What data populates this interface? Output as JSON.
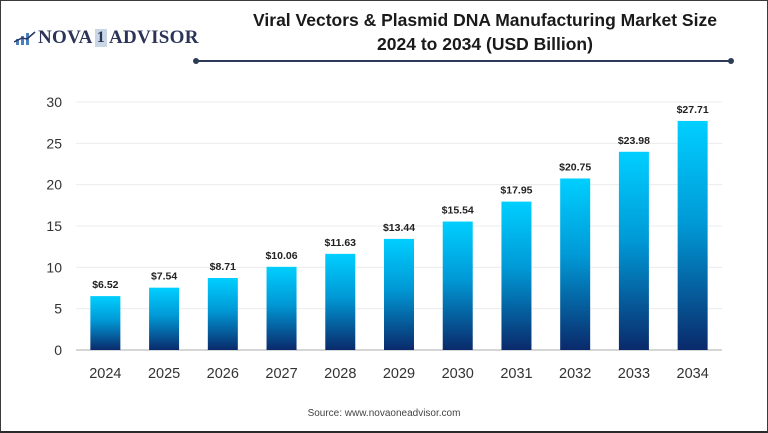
{
  "logo": {
    "brand_left": "NOVA",
    "brand_mid": "1",
    "brand_right": "ADVISOR"
  },
  "title_line1": "Viral Vectors & Plasmid DNA Manufacturing Market Size",
  "title_line2": "2024 to 2034 (USD Billion)",
  "source": "Source: www.novaoneadvisor.com",
  "colors": {
    "bar_top": "#00cfff",
    "bar_bottom": "#0a2a6b",
    "title_rule": "#2f3a5a",
    "brand": "#2b3458"
  },
  "chart_data": {
    "type": "bar",
    "title": "Viral Vectors & Plasmid DNA Manufacturing Market Size 2024 to 2034 (USD Billion)",
    "xlabel": "",
    "ylabel": "",
    "categories": [
      "2024",
      "2025",
      "2026",
      "2027",
      "2028",
      "2029",
      "2030",
      "2031",
      "2032",
      "2033",
      "2034"
    ],
    "values": [
      6.52,
      7.54,
      8.71,
      10.06,
      11.63,
      13.44,
      15.54,
      17.95,
      20.75,
      23.98,
      27.71
    ],
    "data_labels": [
      "$6.52",
      "$7.54",
      "$8.71",
      "$10.06",
      "$11.63",
      "$13.44",
      "$15.54",
      "$17.95",
      "$20.75",
      "$23.98",
      "$27.71"
    ],
    "ylim": [
      0,
      30
    ],
    "yticks": [
      0,
      5,
      10,
      15,
      20,
      25,
      30
    ],
    "grid": true,
    "legend": "none"
  }
}
